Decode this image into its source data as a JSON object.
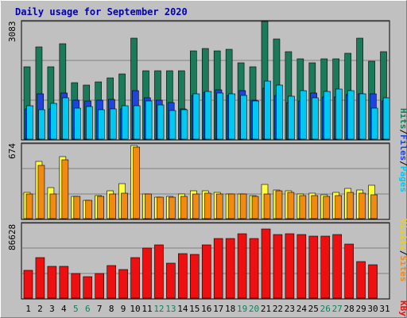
{
  "title": "Daily usage for September 2020",
  "colors": {
    "background": "#c0c0c0",
    "plot": "#c0c0c0",
    "grid": "#808080",
    "hits": "#1a7a5a",
    "files": "#1e44e0",
    "pages": "#00c8f0",
    "visits": "#ffff40",
    "sites": "#f08a10",
    "kbytes": "#ee1010",
    "title": "#0000b0",
    "weekend_day": "#108060",
    "weekday": "#000000"
  },
  "labels": {
    "top_max": "3083",
    "mid_max": "674",
    "bottom_max": "86628",
    "pages": "Pages",
    "files": "Files",
    "hits": "Hits",
    "sites": "Sites",
    "visits": "Visits",
    "kbytes": "KBytes",
    "slash": "/"
  },
  "chart_data": [
    {
      "type": "bar",
      "title": "Daily usage for September 2020",
      "categories": [
        "1",
        "2",
        "3",
        "4",
        "5",
        "6",
        "7",
        "8",
        "9",
        "10",
        "11",
        "12",
        "13",
        "14",
        "15",
        "16",
        "17",
        "18",
        "19",
        "20",
        "21",
        "22",
        "23",
        "24",
        "25",
        "26",
        "27",
        "28",
        "29",
        "30",
        "31"
      ],
      "weekend_days": [
        "5",
        "6",
        "12",
        "13",
        "19",
        "20",
        "26",
        "27"
      ],
      "ylim": [
        0,
        3083
      ],
      "series": [
        {
          "name": "Hits",
          "values": [
            1900,
            2420,
            1900,
            2500,
            1480,
            1420,
            1500,
            1600,
            1700,
            2650,
            1800,
            1800,
            1790,
            1800,
            2320,
            2380,
            2320,
            2360,
            2010,
            1900,
            3083,
            2620,
            2290,
            2100,
            2000,
            2100,
            2100,
            2250,
            2650,
            2040,
            2300
          ]
        },
        {
          "name": "Files",
          "values": [
            800,
            1180,
            800,
            1210,
            1020,
            1000,
            1020,
            1040,
            800,
            1280,
            1080,
            1020,
            960,
            800,
            1150,
            1230,
            1300,
            1150,
            1270,
            1030,
            1330,
            1150,
            950,
            1010,
            1210,
            1100,
            1100,
            1160,
            1180,
            1180,
            990
          ]
        },
        {
          "name": "Pages",
          "values": [
            880,
            780,
            940,
            1090,
            810,
            860,
            780,
            800,
            880,
            870,
            1010,
            890,
            740,
            780,
            1180,
            1260,
            1200,
            1180,
            1150,
            1000,
            1530,
            1410,
            1130,
            1280,
            1090,
            1250,
            1320,
            1280,
            1180,
            810,
            1080
          ]
        }
      ]
    },
    {
      "type": "bar",
      "categories": [
        "1",
        "2",
        "3",
        "4",
        "5",
        "6",
        "7",
        "8",
        "9",
        "10",
        "11",
        "12",
        "13",
        "14",
        "15",
        "16",
        "17",
        "18",
        "19",
        "20",
        "21",
        "22",
        "23",
        "24",
        "25",
        "26",
        "27",
        "28",
        "29",
        "30",
        "31"
      ],
      "ylim": [
        0,
        674
      ],
      "series": [
        {
          "name": "Visits",
          "values": [
            245,
            525,
            285,
            575,
            205,
            170,
            215,
            255,
            320,
            674,
            225,
            195,
            205,
            225,
            260,
            255,
            245,
            230,
            230,
            215,
            315,
            265,
            255,
            230,
            235,
            220,
            240,
            275,
            265,
            310,
            0
          ]
        },
        {
          "name": "Sites",
          "values": [
            230,
            490,
            230,
            545,
            205,
            170,
            205,
            225,
            235,
            660,
            230,
            195,
            195,
            205,
            230,
            235,
            230,
            230,
            230,
            205,
            230,
            260,
            240,
            215,
            215,
            205,
            215,
            240,
            235,
            220,
            0
          ]
        }
      ]
    },
    {
      "type": "bar",
      "categories": [
        "1",
        "2",
        "3",
        "4",
        "5",
        "6",
        "7",
        "8",
        "9",
        "10",
        "11",
        "12",
        "13",
        "14",
        "15",
        "16",
        "17",
        "18",
        "19",
        "20",
        "21",
        "22",
        "23",
        "24",
        "25",
        "26",
        "27",
        "28",
        "29",
        "30",
        "31"
      ],
      "ylim": [
        0,
        86628
      ],
      "series": [
        {
          "name": "KBytes",
          "values": [
            33000,
            48000,
            37500,
            37500,
            29000,
            25500,
            29500,
            38500,
            34000,
            48000,
            59500,
            63000,
            41000,
            53000,
            51500,
            63000,
            70500,
            70500,
            76000,
            71000,
            82000,
            75500,
            76000,
            75000,
            73500,
            73500,
            75000,
            64500,
            43000,
            39500,
            0
          ]
        }
      ]
    }
  ]
}
